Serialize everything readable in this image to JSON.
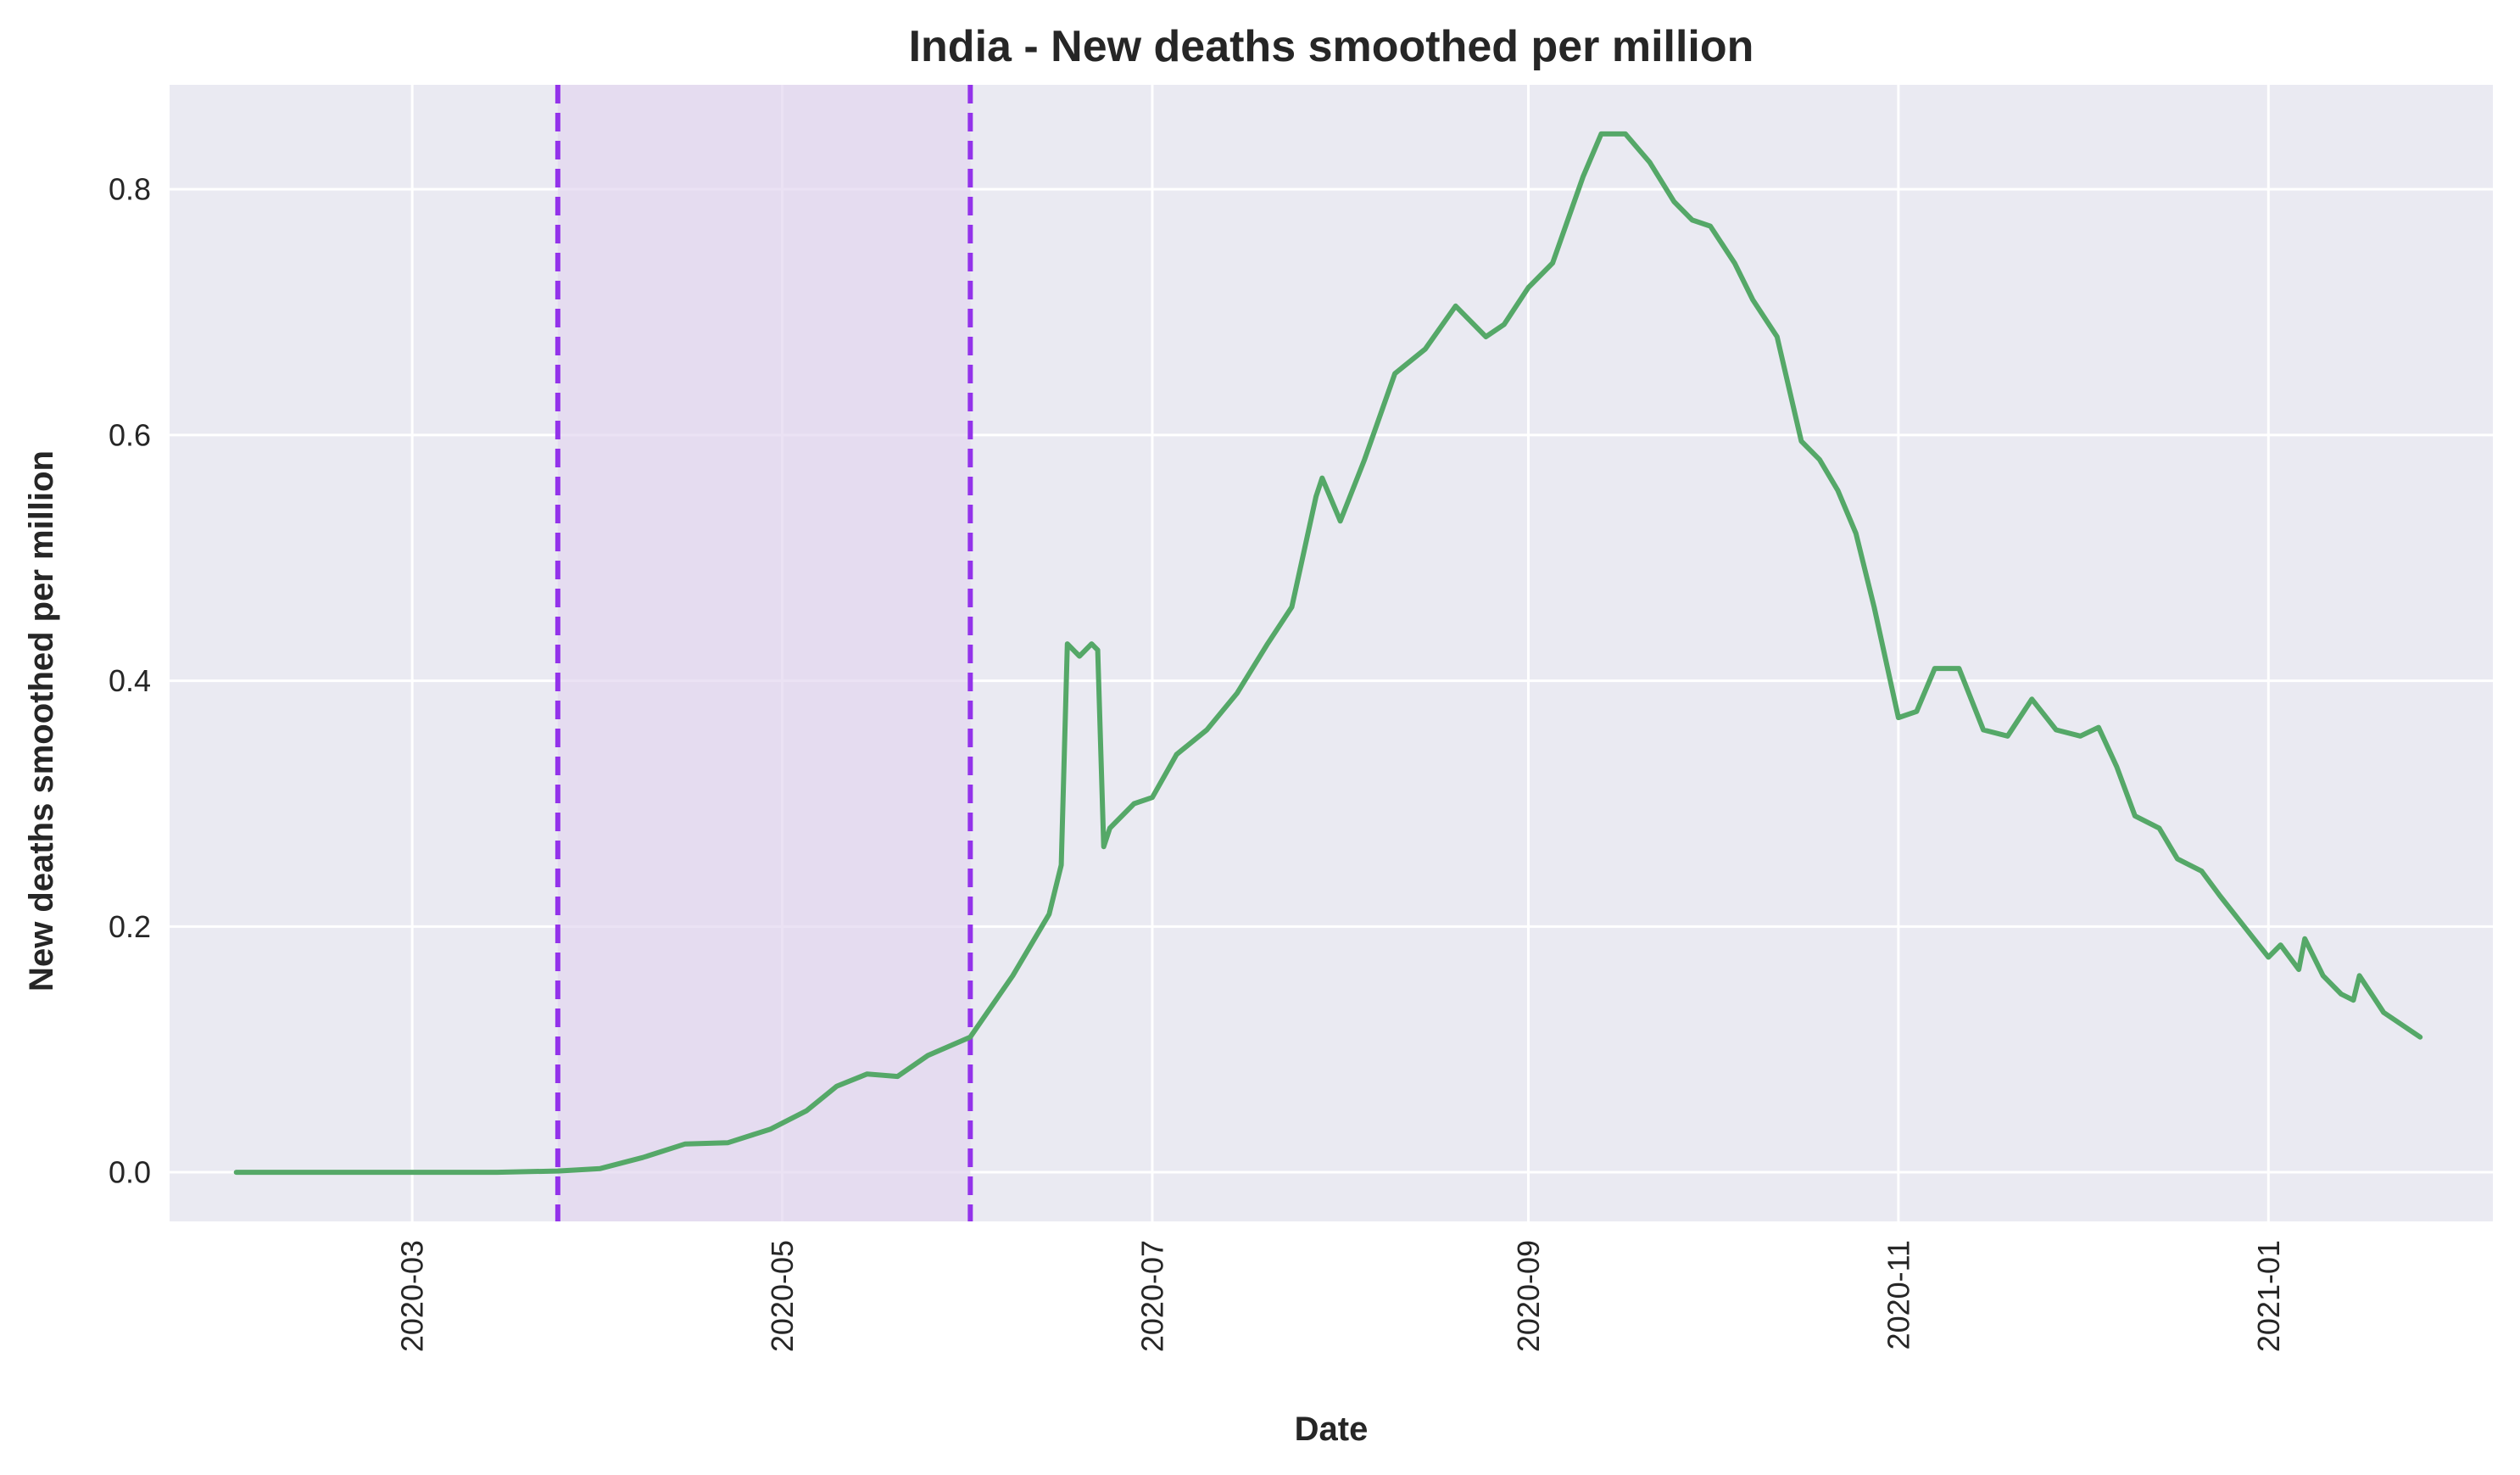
{
  "chart_data": {
    "type": "line",
    "title": "India - New deaths smoothed per million",
    "xlabel": "Date",
    "ylabel": "New deaths smoothed per million",
    "xlim": [
      "2020-01-21",
      "2021-02-07"
    ],
    "ylim": [
      -0.04,
      0.885
    ],
    "x_ticks": [
      "2020-03",
      "2020-05",
      "2020-07",
      "2020-09",
      "2020-11",
      "2021-01"
    ],
    "y_ticks": [
      "0.0",
      "0.2",
      "0.4",
      "0.6",
      "0.8"
    ],
    "grid": true,
    "legend": "none",
    "colors": {
      "background": "#eaeaf2",
      "grid": "#ffffff",
      "line": "#55a868",
      "vline": "#9333ea",
      "shade": "#e2d6f0"
    },
    "shaded_region": {
      "start": "2020-03-25",
      "end": "2020-06-01"
    },
    "vlines": [
      "2020-03-25",
      "2020-06-01"
    ],
    "series": [
      {
        "x": [
          "2020-02-01",
          "2020-02-15",
          "2020-03-01",
          "2020-03-15",
          "2020-03-25",
          "2020-04-01",
          "2020-04-08",
          "2020-04-15",
          "2020-04-22",
          "2020-04-29",
          "2020-05-05",
          "2020-05-10",
          "2020-05-15",
          "2020-05-20",
          "2020-05-25",
          "2020-06-01",
          "2020-06-08",
          "2020-06-14",
          "2020-06-16",
          "2020-06-17",
          "2020-06-19",
          "2020-06-21",
          "2020-06-22",
          "2020-06-23",
          "2020-06-24",
          "2020-06-28",
          "2020-07-01",
          "2020-07-05",
          "2020-07-10",
          "2020-07-15",
          "2020-07-20",
          "2020-07-24",
          "2020-07-28",
          "2020-07-29",
          "2020-08-01",
          "2020-08-05",
          "2020-08-10",
          "2020-08-15",
          "2020-08-20",
          "2020-08-25",
          "2020-08-28",
          "2020-09-01",
          "2020-09-05",
          "2020-09-10",
          "2020-09-13",
          "2020-09-17",
          "2020-09-21",
          "2020-09-25",
          "2020-09-28",
          "2020-10-01",
          "2020-10-05",
          "2020-10-08",
          "2020-10-12",
          "2020-10-16",
          "2020-10-19",
          "2020-10-22",
          "2020-10-25",
          "2020-10-28",
          "2020-11-01",
          "2020-11-04",
          "2020-11-07",
          "2020-11-11",
          "2020-11-15",
          "2020-11-19",
          "2020-11-23",
          "2020-11-27",
          "2020-12-01",
          "2020-12-04",
          "2020-12-07",
          "2020-12-10",
          "2020-12-14",
          "2020-12-17",
          "2020-12-21",
          "2020-12-24",
          "2020-12-28",
          "2021-01-01",
          "2021-01-03",
          "2021-01-06",
          "2021-01-07",
          "2021-01-10",
          "2021-01-13",
          "2021-01-15",
          "2021-01-16",
          "2021-01-20",
          "2021-01-23",
          "2021-01-26"
        ],
        "y": [
          0,
          0,
          0,
          0,
          0.001,
          0.003,
          0.012,
          0.023,
          0.024,
          0.035,
          0.05,
          0.07,
          0.08,
          0.078,
          0.095,
          0.11,
          0.16,
          0.21,
          0.25,
          0.43,
          0.42,
          0.43,
          0.425,
          0.265,
          0.28,
          0.3,
          0.305,
          0.34,
          0.36,
          0.39,
          0.43,
          0.46,
          0.55,
          0.565,
          0.53,
          0.58,
          0.65,
          0.67,
          0.705,
          0.68,
          0.69,
          0.72,
          0.74,
          0.81,
          0.845,
          0.845,
          0.822,
          0.79,
          0.775,
          0.77,
          0.74,
          0.71,
          0.68,
          0.595,
          0.58,
          0.555,
          0.52,
          0.46,
          0.37,
          0.375,
          0.41,
          0.41,
          0.36,
          0.355,
          0.385,
          0.36,
          0.355,
          0.362,
          0.33,
          0.29,
          0.28,
          0.255,
          0.245,
          0.225,
          0.2,
          0.175,
          0.185,
          0.165,
          0.19,
          0.16,
          0.145,
          0.14,
          0.16,
          0.13,
          0.12,
          0.11
        ]
      }
    ]
  }
}
